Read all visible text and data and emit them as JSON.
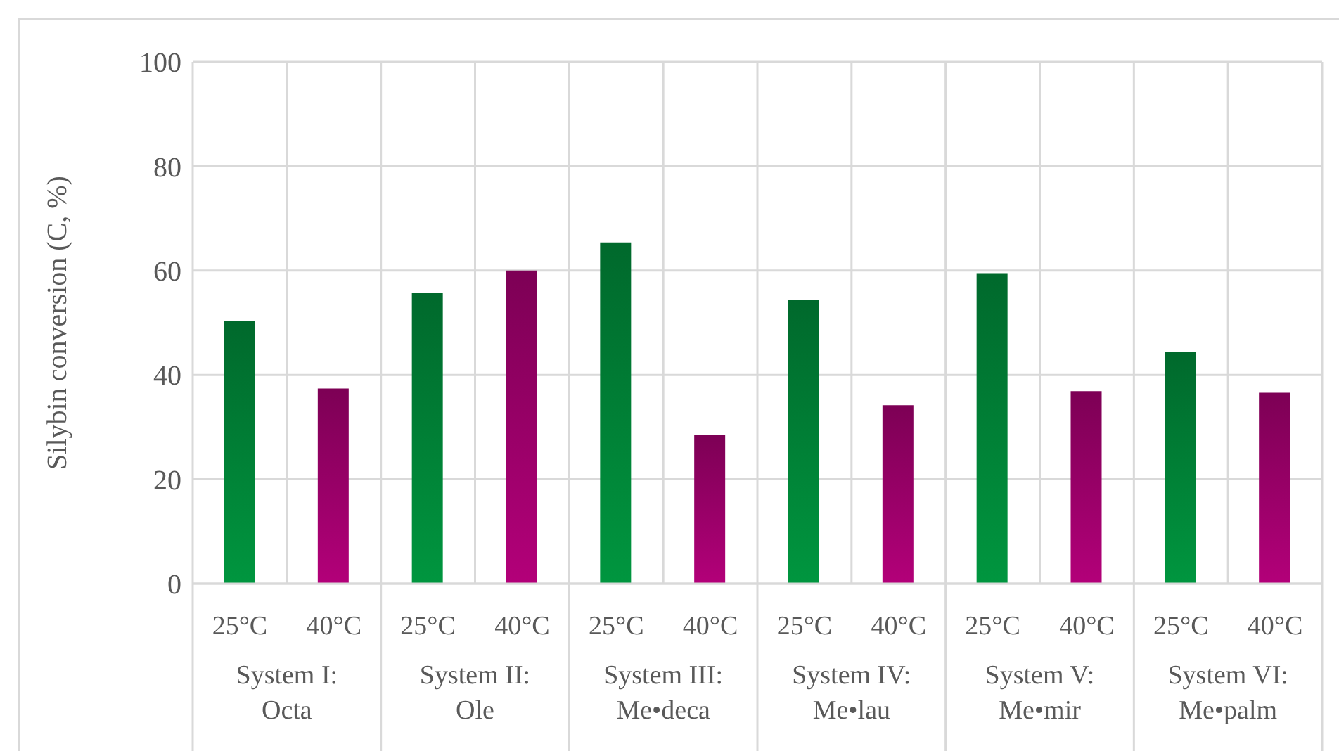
{
  "chart_data": {
    "type": "bar",
    "ylabel": "Silybin conversion (C, %)",
    "categories": [
      "System I:\nOcta",
      "System II:\nOle",
      "System III:\nMe•deca",
      "System IV:\nMe•lau",
      "System V:\nMe•mir",
      "System VI:\nMe•palm"
    ],
    "series": [
      {
        "name": "25°C",
        "color": "#00963f",
        "values": [
          50.3,
          55.7,
          65.4,
          54.3,
          59.5,
          44.4
        ]
      },
      {
        "name": "40°C",
        "color": "#b30079",
        "values": [
          37.4,
          60.0,
          28.5,
          34.2,
          36.9,
          36.6
        ]
      }
    ],
    "ylim": [
      0,
      100
    ],
    "yticks": [
      0,
      20,
      40,
      60,
      80,
      100
    ],
    "grid": true,
    "legend": false
  }
}
